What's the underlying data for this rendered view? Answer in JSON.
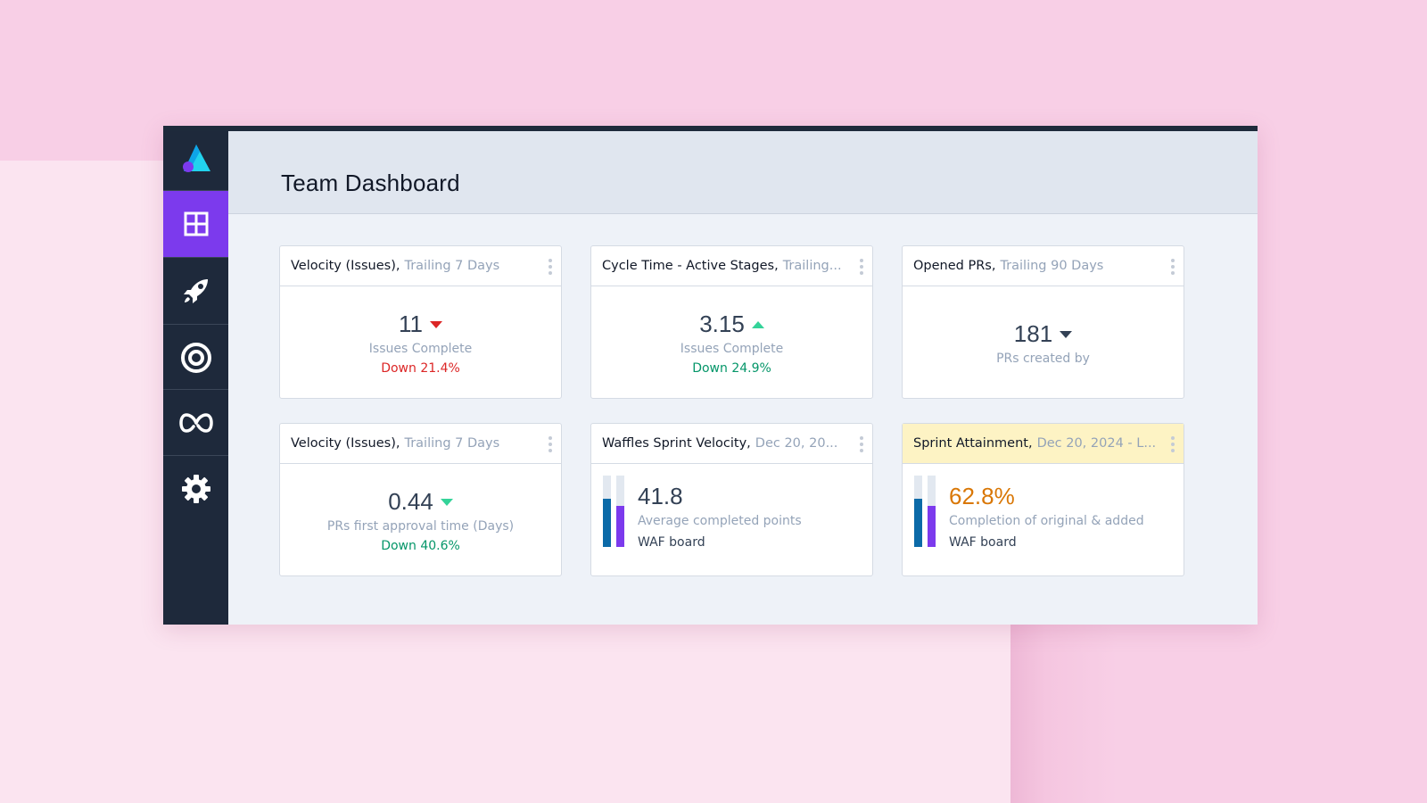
{
  "header": {
    "title": "Team Dashboard"
  },
  "sidebar": {
    "logo": "app-logo",
    "items": [
      {
        "name": "dashboard",
        "icon": "grid-icon",
        "active": true
      },
      {
        "name": "rocket",
        "icon": "rocket-icon",
        "active": false
      },
      {
        "name": "target",
        "icon": "target-icon",
        "active": false
      },
      {
        "name": "loop",
        "icon": "infinity-icon",
        "active": false
      },
      {
        "name": "settings",
        "icon": "gear-icon",
        "active": false
      }
    ]
  },
  "colors": {
    "accent": "#7c3aed",
    "down_red": "#dc2626",
    "down_green": "#059669",
    "up_green": "#34d399",
    "bar_blue": "#0b6aa8",
    "bar_purple": "#7c3aed",
    "attainment": "#d97706"
  },
  "cards": [
    {
      "title": "Velocity (Issues),",
      "subtitle": "Trailing 7 Days",
      "value": "11",
      "trend": "down",
      "label": "Issues Complete",
      "delta": "Down 21.4%"
    },
    {
      "title": "Cycle Time - Active Stages,",
      "subtitle": "Trailing...",
      "value": "3.15",
      "trend": "up",
      "label": "Issues Complete",
      "delta": "Down 24.9%"
    },
    {
      "title": "Opened PRs,",
      "subtitle": "Trailing 90 Days",
      "value": "181",
      "trend": "down",
      "label": "PRs created by"
    },
    {
      "title": "Velocity (Issues),",
      "subtitle": "Trailing 7 Days",
      "value": "0.44",
      "trend": "down",
      "label": "PRs first approval time (Days)",
      "delta": "Down 40.6%"
    },
    {
      "title": "Waffles Sprint Velocity,",
      "subtitle": "Dec 20, 20...",
      "value": "41.8",
      "label": "Average completed points",
      "board": "WAF board",
      "bars": [
        0.67,
        0.57
      ]
    },
    {
      "title": "Sprint Attainment,",
      "subtitle": "Dec 20, 2024 - L...",
      "value": "62.8%",
      "label": "Completion of original & added",
      "board": "WAF board",
      "bars": [
        0.67,
        0.57
      ]
    }
  ]
}
